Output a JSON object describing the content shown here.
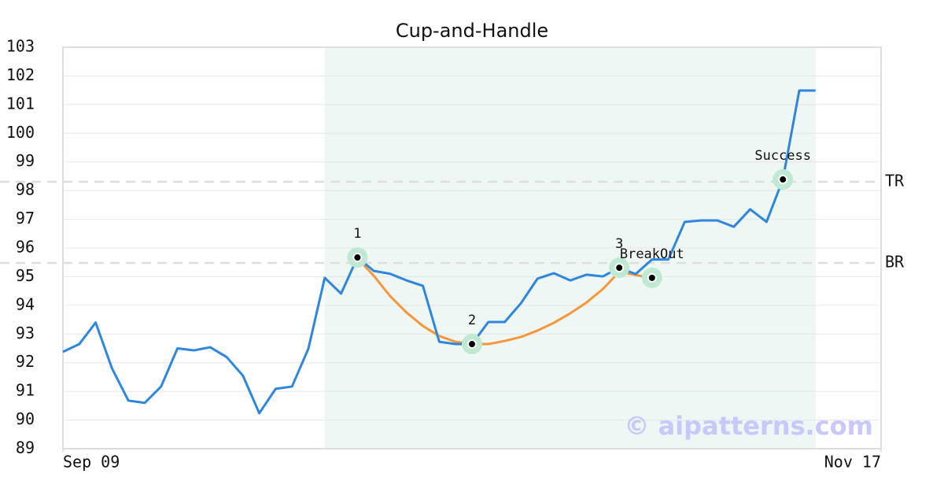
{
  "chart_data": {
    "type": "line",
    "title": "Cup-and-Handle",
    "xlim": [
      0,
      50
    ],
    "xticks": [
      {
        "value": 0,
        "label": "Sep 09"
      },
      {
        "value": 50,
        "label": "Nov 17"
      }
    ],
    "ylim": [
      89,
      103
    ],
    "yticks": [
      89,
      90,
      91,
      92,
      93,
      94,
      95,
      96,
      97,
      98,
      99,
      100,
      101,
      102,
      103
    ],
    "grid": true,
    "highlight": [
      16,
      46
    ],
    "highlight_color": "#eef7f3",
    "x": [
      0,
      1,
      2,
      3,
      4,
      5,
      6,
      7,
      8,
      9,
      10,
      11,
      12,
      13,
      14,
      15,
      16,
      17,
      18,
      19,
      20,
      21,
      22,
      23,
      24,
      25,
      26,
      27,
      28,
      29,
      30,
      31,
      32,
      33,
      34,
      35,
      36,
      37,
      38,
      39,
      40,
      41,
      42,
      43,
      44,
      45,
      46
    ],
    "series": [
      {
        "color": "#2e86de",
        "values": [
          92.38,
          92.65,
          93.4,
          91.8,
          90.68,
          90.6,
          91.17,
          92.5,
          92.43,
          92.54,
          92.2,
          91.55,
          90.24,
          91.09,
          91.17,
          92.49,
          94.96,
          94.41,
          95.67,
          95.2,
          95.1,
          94.87,
          94.68,
          92.73,
          92.65,
          92.65,
          93.42,
          93.42,
          94.08,
          94.93,
          95.12,
          94.87,
          95.07,
          95.01,
          95.31,
          95.09,
          95.6,
          95.6,
          96.91,
          96.96,
          96.96,
          96.74,
          97.35,
          96.91,
          98.39,
          101.49,
          101.49
        ]
      },
      {
        "color": "#f7973a",
        "values": [
          null,
          null,
          null,
          null,
          null,
          null,
          null,
          null,
          null,
          null,
          null,
          null,
          null,
          null,
          null,
          null,
          null,
          null,
          95.64,
          95.03,
          94.32,
          93.75,
          93.28,
          92.93,
          92.73,
          92.65,
          92.65,
          92.76,
          92.9,
          93.12,
          93.39,
          93.72,
          94.1,
          94.57,
          95.17,
          95.06,
          94.95,
          null,
          null,
          null,
          null,
          null,
          null,
          null,
          null,
          null,
          null
        ]
      }
    ],
    "levels": [
      {
        "label": "TR",
        "value": 98.31
      },
      {
        "label": "BR",
        "value": 95.48
      }
    ],
    "annotations": [
      {
        "label": "1",
        "x": 18,
        "y": 95.67
      },
      {
        "label": "2",
        "x": 25,
        "y": 92.65
      },
      {
        "label": "3",
        "x": 34,
        "y": 95.31
      },
      {
        "label": "BreakOut",
        "x": 36,
        "y": 94.96
      },
      {
        "label": "Success",
        "x": 44,
        "y": 98.39
      }
    ],
    "watermark": "© aipatterns.com"
  }
}
